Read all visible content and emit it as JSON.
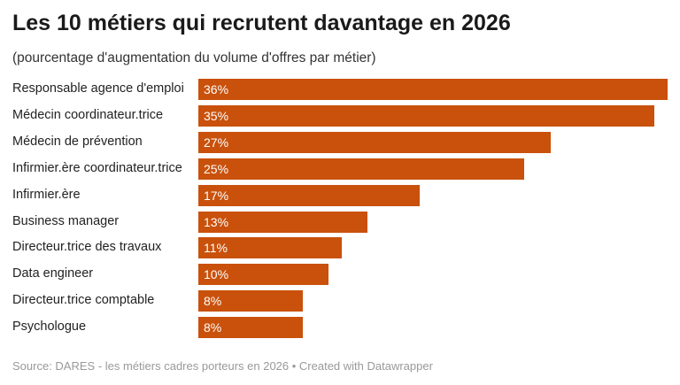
{
  "title": "Les 10 métiers qui recrutent davantage en 2026",
  "subtitle": "(pourcentage d'augmentation du volume d'offres par métier)",
  "source": "Source: DARES - les métiers cadres porteurs en 2026 • Created with Datawrapper",
  "colors": {
    "bar": "#c9510c"
  },
  "chart_data": {
    "type": "bar",
    "orientation": "horizontal",
    "title": "Les 10 métiers qui recrutent davantage en 2026",
    "subtitle": "(pourcentage d'augmentation du volume d'offres par métier)",
    "categories": [
      "Responsable agence d'emploi",
      "Médecin coordinateur.trice",
      "Médecin de prévention",
      "Infirmier.ère coordinateur.trice",
      "Infirmier.ère",
      "Business manager",
      "Directeur.trice des travaux",
      "Data engineer",
      "Directeur.trice comptable",
      "Psychologue"
    ],
    "values": [
      36,
      35,
      27,
      25,
      17,
      13,
      11,
      10,
      8,
      8
    ],
    "value_labels": [
      "36%",
      "35%",
      "27%",
      "25%",
      "17%",
      "13%",
      "11%",
      "10%",
      "8%",
      "8%"
    ],
    "unit": "%",
    "xlim": [
      0,
      36
    ]
  }
}
